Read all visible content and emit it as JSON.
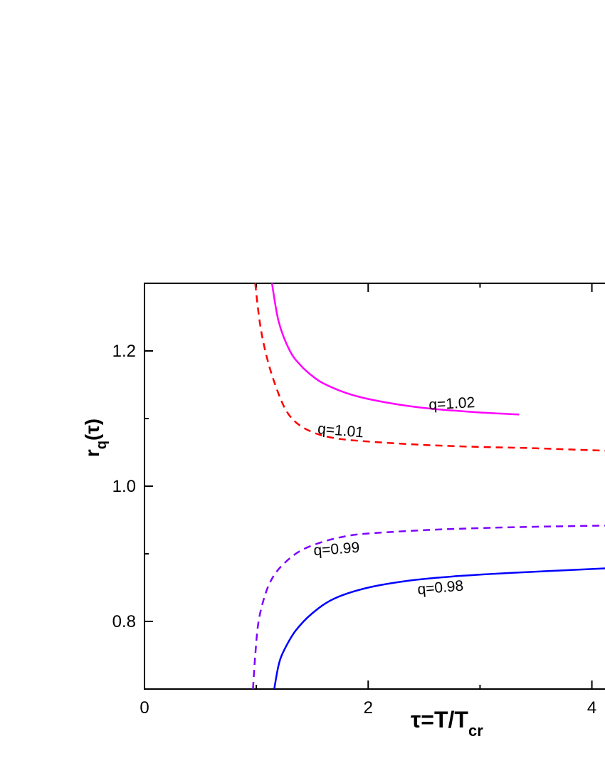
{
  "chart_data": {
    "type": "line",
    "xlabel": {
      "main": "τ=T/T",
      "sub": "cr"
    },
    "ylabel": {
      "main": "r",
      "sub": "q",
      "tail": "(τ)"
    },
    "xlim": [
      0,
      4.2
    ],
    "ylim": [
      0.7,
      1.3
    ],
    "xticks": [
      0,
      2,
      4
    ],
    "xtick_labels": [
      "0",
      "2",
      "4"
    ],
    "yticks": [
      0.8,
      1.0,
      1.2
    ],
    "ytick_labels": [
      "0.8",
      "1.0",
      "1.2"
    ],
    "grid": false,
    "series": [
      {
        "name": "q=1.02",
        "color": "#ff00ff",
        "dash": "solid",
        "points": [
          [
            1.14,
            1.3
          ],
          [
            1.2,
            1.243
          ],
          [
            1.3,
            1.2
          ],
          [
            1.4,
            1.178
          ],
          [
            1.5,
            1.163
          ],
          [
            1.6,
            1.152
          ],
          [
            1.8,
            1.138
          ],
          [
            2.0,
            1.129
          ],
          [
            2.3,
            1.12
          ],
          [
            2.6,
            1.114
          ],
          [
            3.0,
            1.109
          ],
          [
            3.35,
            1.106
          ]
        ]
      },
      {
        "name": "q=1.01",
        "color": "#ff0000",
        "dash": "dashed",
        "points": [
          [
            0.99,
            1.3
          ],
          [
            1.03,
            1.243
          ],
          [
            1.08,
            1.2
          ],
          [
            1.15,
            1.159
          ],
          [
            1.25,
            1.117
          ],
          [
            1.35,
            1.095
          ],
          [
            1.5,
            1.08
          ],
          [
            1.7,
            1.071
          ],
          [
            2.0,
            1.066
          ],
          [
            2.5,
            1.061
          ],
          [
            3.0,
            1.058
          ],
          [
            3.5,
            1.056
          ],
          [
            4.2,
            1.052
          ]
        ]
      },
      {
        "name": "q=0.99",
        "color": "#7f00ff",
        "dash": "dashed",
        "points": [
          [
            0.97,
            0.7
          ],
          [
            0.99,
            0.75
          ],
          [
            1.02,
            0.8
          ],
          [
            1.08,
            0.84
          ],
          [
            1.15,
            0.866
          ],
          [
            1.25,
            0.886
          ],
          [
            1.4,
            0.905
          ],
          [
            1.6,
            0.918
          ],
          [
            1.8,
            0.926
          ],
          [
            2.0,
            0.93
          ],
          [
            2.5,
            0.935
          ],
          [
            3.0,
            0.938
          ],
          [
            3.5,
            0.94
          ],
          [
            4.2,
            0.942
          ]
        ]
      },
      {
        "name": "q=0.98",
        "color": "#0000ff",
        "dash": "solid",
        "points": [
          [
            1.16,
            0.7
          ],
          [
            1.2,
            0.736
          ],
          [
            1.25,
            0.758
          ],
          [
            1.35,
            0.786
          ],
          [
            1.5,
            0.812
          ],
          [
            1.7,
            0.834
          ],
          [
            2.0,
            0.85
          ],
          [
            2.4,
            0.861
          ],
          [
            2.8,
            0.867
          ],
          [
            3.3,
            0.872
          ],
          [
            4.2,
            0.879
          ]
        ]
      }
    ],
    "annotations": [
      {
        "text": "q=1.02",
        "x": 2.75,
        "y": 1.115,
        "rotate": -3
      },
      {
        "text": "q=1.01",
        "x": 1.75,
        "y": 1.075,
        "rotate": 5
      },
      {
        "text": "q=0.99",
        "x": 1.72,
        "y": 0.9,
        "rotate": -4
      },
      {
        "text": "q=0.98",
        "x": 2.65,
        "y": 0.843,
        "rotate": -5
      }
    ]
  }
}
